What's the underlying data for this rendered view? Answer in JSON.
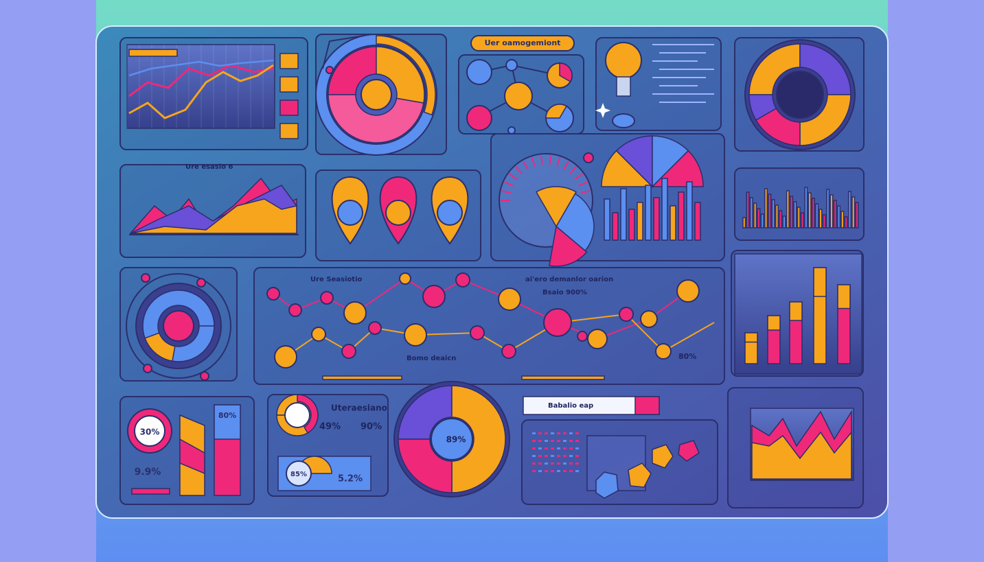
{
  "top_banner": {
    "title": "Uer oamogemiont"
  },
  "area_panel": {
    "title": "Ure esasio 6"
  },
  "network_panel": {
    "title": "Ure Seasiotio",
    "subtitle": "ai'ero demanlor oarion",
    "note": "Bsaio 900%",
    "caption": "Bomo deaicn",
    "stat": "80%"
  },
  "gauge_panel": {
    "title": "Uteraesiano",
    "stats": [
      "49%",
      "90%"
    ]
  },
  "pill_panel": {
    "badge": "85%",
    "stat": "5.2%"
  },
  "kpi_panel": {
    "badge": "30%",
    "stat": "9.9%",
    "bar_label": "80%"
  },
  "donut_panel": {
    "center": "89%"
  },
  "search_panel": {
    "label": "Babalio eap"
  }
}
